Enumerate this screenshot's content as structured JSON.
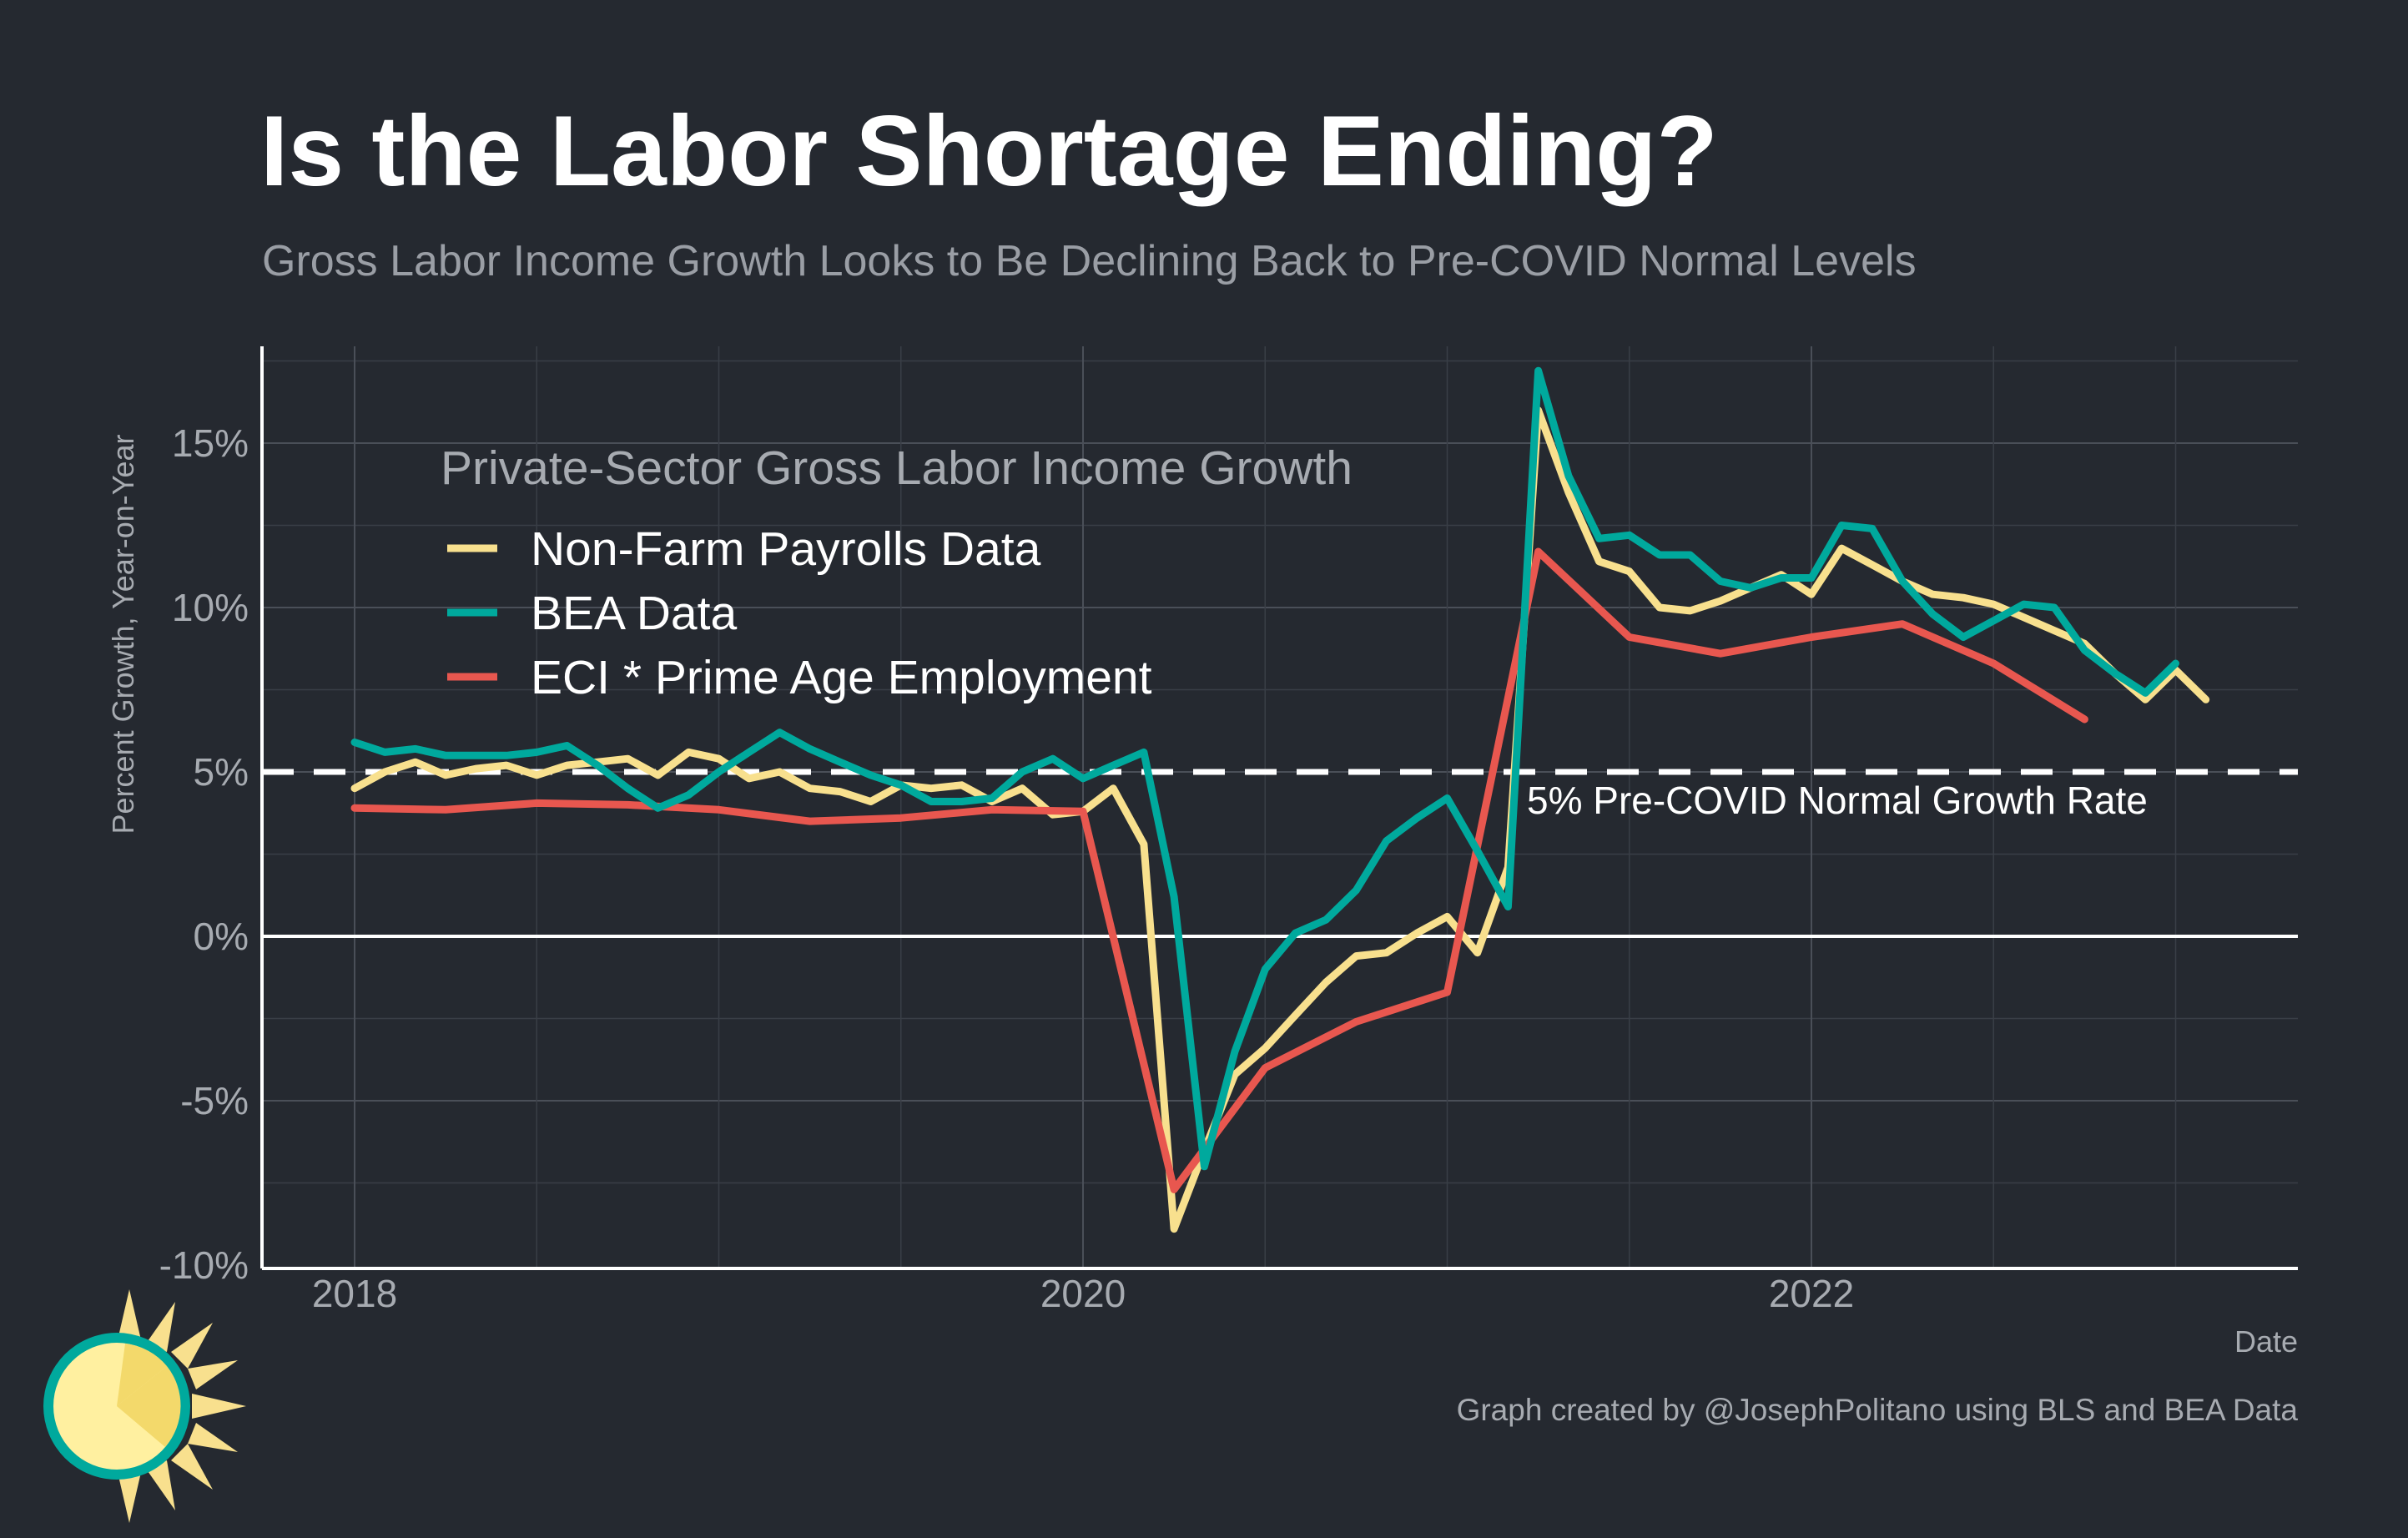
{
  "chart_data": {
    "type": "line",
    "title": "Is the Labor Shortage Ending?",
    "subtitle": "Gross Labor Income Growth Looks to Be Declining Back to Pre-COVID Normal Levels",
    "xlabel": "Date",
    "ylabel": "Percent Growth, Year-on-Year",
    "xlim": [
      2017.75,
      2023.35
    ],
    "ylim": [
      -10,
      18
    ],
    "x_ticks": [
      2018,
      2020,
      2022
    ],
    "x_tick_labels": [
      "2018",
      "2020",
      "2022"
    ],
    "y_ticks": [
      -10,
      -5,
      0,
      5,
      10,
      15
    ],
    "y_tick_labels": [
      "-10%",
      "-5%",
      "0%",
      "5%",
      "10%",
      "15%"
    ],
    "grid": true,
    "legend": {
      "title": "Private-Sector Gross Labor Income Growth",
      "position": "top-left"
    },
    "reference_line": {
      "y": 5,
      "style": "dashed",
      "label": "5% Pre-COVID Normal Growth Rate"
    },
    "zero_line": {
      "y": 0
    },
    "series": [
      {
        "name": "Non-Farm Payrolls Data",
        "color": "#F8E08E",
        "x": [
          2018.0,
          2018.083,
          2018.167,
          2018.25,
          2018.333,
          2018.417,
          2018.5,
          2018.583,
          2018.667,
          2018.75,
          2018.833,
          2018.917,
          2019.0,
          2019.083,
          2019.167,
          2019.25,
          2019.333,
          2019.417,
          2019.5,
          2019.583,
          2019.667,
          2019.75,
          2019.833,
          2019.917,
          2020.0,
          2020.083,
          2020.167,
          2020.25,
          2020.333,
          2020.417,
          2020.5,
          2020.583,
          2020.667,
          2020.75,
          2020.833,
          2020.917,
          2021.0,
          2021.083,
          2021.167,
          2021.25,
          2021.333,
          2021.417,
          2021.5,
          2021.583,
          2021.667,
          2021.75,
          2021.833,
          2021.917,
          2022.0,
          2022.083,
          2022.167,
          2022.25,
          2022.333,
          2022.417,
          2022.5,
          2022.583,
          2022.667,
          2022.75,
          2022.833,
          2022.917,
          2023.0,
          2023.083
        ],
        "values": [
          4.5,
          5.0,
          5.3,
          4.9,
          5.1,
          5.2,
          4.9,
          5.2,
          5.3,
          5.4,
          4.9,
          5.6,
          5.4,
          4.8,
          5.0,
          4.5,
          4.4,
          4.1,
          4.6,
          4.5,
          4.6,
          4.1,
          4.5,
          3.7,
          3.8,
          4.5,
          2.8,
          -8.9,
          -6.5,
          -4.2,
          -3.4,
          -2.4,
          -1.4,
          -0.6,
          -0.5,
          0.1,
          0.6,
          -0.5,
          2.1,
          16.0,
          13.5,
          11.4,
          11.1,
          10.0,
          9.9,
          10.2,
          10.6,
          11.0,
          10.4,
          11.8,
          11.3,
          10.8,
          10.4,
          10.3,
          10.1,
          9.7,
          9.3,
          8.9,
          8.0,
          7.2,
          8.1,
          7.2
        ]
      },
      {
        "name": "BEA Data",
        "color": "#00A99D",
        "x": [
          2018.0,
          2018.083,
          2018.167,
          2018.25,
          2018.333,
          2018.417,
          2018.5,
          2018.583,
          2018.667,
          2018.75,
          2018.833,
          2018.917,
          2019.0,
          2019.083,
          2019.167,
          2019.25,
          2019.333,
          2019.417,
          2019.5,
          2019.583,
          2019.667,
          2019.75,
          2019.833,
          2019.917,
          2020.0,
          2020.083,
          2020.167,
          2020.25,
          2020.333,
          2020.417,
          2020.5,
          2020.583,
          2020.667,
          2020.75,
          2020.833,
          2020.917,
          2021.0,
          2021.083,
          2021.167,
          2021.25,
          2021.333,
          2021.417,
          2021.5,
          2021.583,
          2021.667,
          2021.75,
          2021.833,
          2021.917,
          2022.0,
          2022.083,
          2022.167,
          2022.25,
          2022.333,
          2022.417,
          2022.5,
          2022.583,
          2022.667,
          2022.75,
          2022.833,
          2022.917,
          2023.0
        ],
        "values": [
          5.9,
          5.6,
          5.7,
          5.5,
          5.5,
          5.5,
          5.6,
          5.8,
          5.2,
          4.5,
          3.9,
          4.3,
          5.0,
          5.6,
          6.2,
          5.7,
          5.3,
          4.9,
          4.6,
          4.1,
          4.1,
          4.2,
          5.0,
          5.4,
          4.8,
          5.2,
          5.6,
          1.2,
          -7.0,
          -3.5,
          -1.0,
          0.1,
          0.5,
          1.4,
          2.9,
          3.6,
          4.2,
          2.6,
          0.9,
          17.2,
          14.0,
          12.1,
          12.2,
          11.6,
          11.6,
          10.8,
          10.6,
          10.9,
          10.9,
          12.5,
          12.4,
          10.8,
          9.8,
          9.1,
          9.6,
          10.1,
          10.0,
          8.7,
          8.0,
          7.4,
          8.3
        ]
      },
      {
        "name": "ECI * Prime Age Employment",
        "color": "#E8574F",
        "x": [
          2018.0,
          2018.25,
          2018.5,
          2018.75,
          2019.0,
          2019.25,
          2019.5,
          2019.75,
          2020.0,
          2020.25,
          2020.5,
          2020.75,
          2021.0,
          2021.25,
          2021.5,
          2021.75,
          2022.0,
          2022.25,
          2022.5,
          2022.75
        ],
        "values": [
          3.9,
          3.85,
          4.05,
          4.0,
          3.85,
          3.5,
          3.6,
          3.85,
          3.8,
          -7.7,
          -4.0,
          -2.6,
          -1.7,
          11.7,
          9.1,
          8.6,
          9.1,
          9.5,
          8.3,
          6.6
        ]
      }
    ],
    "caption": "Graph created by @JosephPolitano using BLS and BEA Data"
  }
}
